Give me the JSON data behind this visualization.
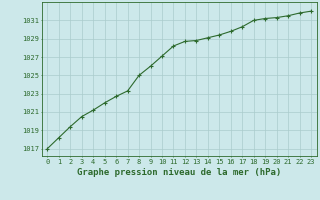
{
  "x": [
    0,
    1,
    2,
    3,
    4,
    5,
    6,
    7,
    8,
    9,
    10,
    11,
    12,
    13,
    14,
    15,
    16,
    17,
    18,
    19,
    20,
    21,
    22,
    23
  ],
  "y": [
    1017.0,
    1018.2,
    1019.4,
    1020.5,
    1021.2,
    1022.0,
    1022.7,
    1023.3,
    1025.0,
    1026.0,
    1027.1,
    1028.2,
    1028.7,
    1028.8,
    1029.1,
    1029.4,
    1029.8,
    1030.3,
    1031.0,
    1031.2,
    1031.3,
    1031.5,
    1031.8,
    1032.0
  ],
  "line_color": "#2d6a2d",
  "marker": "+",
  "marker_size": 3,
  "marker_color": "#2d6a2d",
  "bg_color": "#cce8ea",
  "grid_color": "#aacccc",
  "xlabel": "Graphe pression niveau de la mer (hPa)",
  "xlabel_color": "#2d6a2d",
  "xlabel_fontsize": 6.5,
  "ytick_labels": [
    "1017",
    "1019",
    "1021",
    "1023",
    "1025",
    "1027",
    "1029",
    "1031"
  ],
  "ytick_values": [
    1017,
    1019,
    1021,
    1023,
    1025,
    1027,
    1029,
    1031
  ],
  "ylim": [
    1016.2,
    1033.0
  ],
  "xlim": [
    -0.5,
    23.5
  ],
  "tick_color": "#2d6a2d",
  "tick_fontsize": 5.0,
  "axis_color": "#2d6a2d",
  "line_width": 0.8
}
